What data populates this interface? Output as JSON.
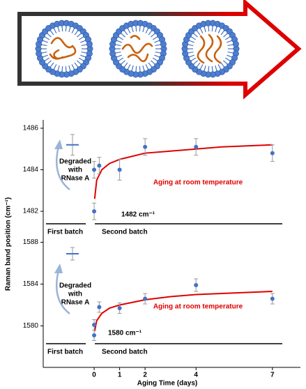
{
  "chart_data": [
    {
      "type": "scatter",
      "ylabel": "Raman band position (cm⁻¹)",
      "xlim": [
        -2,
        8.1
      ],
      "ylim": [
        1481.5,
        1486.3
      ],
      "yticks": [
        1482,
        1484,
        1486
      ],
      "points": {
        "color": "#4472c4",
        "x": [
          0,
          0,
          0.2,
          1,
          2,
          4,
          7
        ],
        "values": [
          1484.0,
          1482.0,
          1484.2,
          1484.0,
          1485.1,
          1485.1,
          1484.8
        ],
        "errors": [
          0.4,
          0.4,
          0.4,
          0.5,
          0.4,
          0.4,
          0.4
        ]
      },
      "first_batch": {
        "value": 1485.2,
        "error": 0.5
      },
      "fit": {
        "color": "#e00000",
        "x": [
          0.02,
          0.1,
          0.3,
          0.6,
          1,
          2,
          3,
          4,
          5,
          6,
          7
        ],
        "values": [
          1482.6,
          1483.5,
          1484.0,
          1484.3,
          1484.5,
          1484.8,
          1484.9,
          1485.0,
          1485.1,
          1485.15,
          1485.2
        ]
      },
      "annotations": {
        "degraded": [
          "Degraded",
          "with",
          "RNase A"
        ],
        "aging": "Aging at room temperature",
        "band": "1482 cm⁻¹",
        "first": "First batch",
        "second": "Second batch"
      }
    },
    {
      "type": "scatter",
      "xlabel": "Aging Time (days)",
      "xlim": [
        -2,
        8.1
      ],
      "xticks": [
        0,
        1,
        2,
        4,
        7
      ],
      "ylim": [
        1578.5,
        1588.5
      ],
      "yticks": [
        1580,
        1584,
        1588
      ],
      "points": {
        "color": "#4472c4",
        "x": [
          0,
          0,
          0.2,
          1,
          2,
          4,
          7
        ],
        "values": [
          1580.1,
          1579.1,
          1581.8,
          1581.7,
          1582.6,
          1583.9,
          1582.6
        ],
        "errors": [
          0.5,
          0.5,
          0.5,
          0.5,
          0.5,
          0.6,
          0.5
        ]
      },
      "first_batch": {
        "value": 1586.9,
        "error": 0.6
      },
      "fit": {
        "color": "#e00000",
        "x": [
          0.02,
          0.1,
          0.3,
          0.6,
          1,
          2,
          3,
          4,
          5,
          6,
          7
        ],
        "values": [
          1579.5,
          1580.5,
          1581.2,
          1581.7,
          1582.0,
          1582.5,
          1582.8,
          1583.0,
          1583.1,
          1583.2,
          1583.3
        ]
      },
      "annotations": {
        "degraded": [
          "Degraded",
          "with",
          "RNase A"
        ],
        "aging": "Aging at room temperature",
        "band": "1580 cm⁻¹",
        "first": "First batch",
        "second": "Second batch"
      }
    }
  ]
}
